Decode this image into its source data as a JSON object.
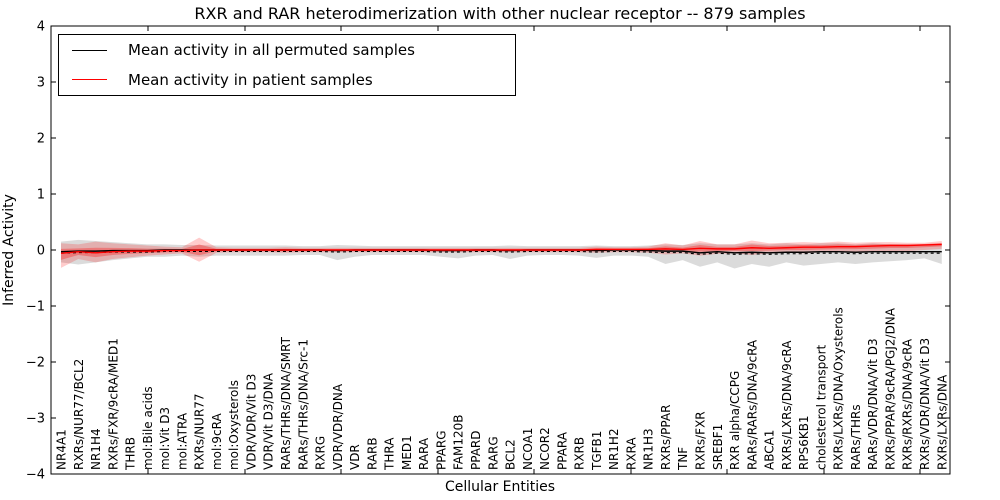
{
  "title": "RXR and RAR heterodimerization with other nuclear receptor -- 879 samples",
  "axes": {
    "xlabel": "Cellular Entities",
    "ylabel": "Inferred Activity",
    "yticks": [
      "4",
      "3",
      "2",
      "1",
      "0",
      "−1",
      "−2",
      "−3",
      "−4"
    ],
    "ylim": [
      -4,
      4
    ]
  },
  "legend": {
    "items": [
      {
        "label": "Mean activity in all permuted samples",
        "color": "#000000"
      },
      {
        "label": "Mean activity in patient samples",
        "color": "#ff0000"
      }
    ]
  },
  "colors": {
    "permuted_line": "#000000",
    "patient_line": "#ff0000",
    "permuted_band": "#000000",
    "patient_band": "#ff0000"
  },
  "chart_data": {
    "type": "line",
    "title": "RXR and RAR heterodimerization with other nuclear receptor -- 879 samples",
    "xlabel": "Cellular Entities",
    "ylabel": "Inferred Activity",
    "ylim": [
      -4,
      4
    ],
    "grid": false,
    "legend_position": "upper left",
    "categories": [
      "NR4A1",
      "RXRs/NUR77/BCL2",
      "NR1H4",
      "RXRs/FXR/9cRA/MED1",
      "THRB",
      "mol:Bile acids",
      "mol:Vit D3",
      "mol:ATRA",
      "RXRs/NUR77",
      "mol:9cRA",
      "mol:Oxysterols",
      "VDR/VDR/Vit D3",
      "VDR/Vit D3/DNA",
      "RARs/THRs/DNA/SMRT",
      "RARs/THRs/DNA/Src-1",
      "RXRG",
      "VDR/VDR/DNA",
      "VDR",
      "RARB",
      "THRA",
      "MED1",
      "RARA",
      "PPARG",
      "FAM120B",
      "PPARD",
      "RARG",
      "BCL2",
      "NCOA1",
      "NCOR2",
      "PPARA",
      "RXRB",
      "TGFB1",
      "NR1H2",
      "RXRA",
      "NR1H3",
      "RXRs/PPAR",
      "TNF",
      "RXRs/FXR",
      "SREBF1",
      "RXR alpha/CCPG",
      "RARs/RARs/DNA/9cRA",
      "ABCA1",
      "RXRs/LXRs/DNA/9cRA",
      "RPS6KB1",
      "cholesterol transport",
      "RXRs/LXRs/DNA/Oxysterols",
      "RARs/THRs",
      "RARs/VDR/DNA/Vit D3",
      "RXRs/PPAR/9cRA/PGJ2/DNA",
      "RXRs/RXRs/DNA/9cRA",
      "RXRs/VDR/DNA/Vit D3",
      "RXRs/LXRs/DNA"
    ],
    "series": [
      {
        "name": "Mean activity in all permuted samples",
        "color": "#000000",
        "values": [
          -0.03,
          -0.02,
          -0.02,
          -0.01,
          -0.01,
          -0.01,
          0,
          0,
          0,
          0,
          0,
          0,
          0,
          0,
          0,
          0,
          -0.01,
          0,
          0,
          0,
          0,
          0,
          -0.01,
          -0.01,
          0,
          0,
          -0.01,
          0,
          0,
          0,
          0,
          -0.01,
          0,
          0,
          -0.01,
          -0.02,
          -0.02,
          -0.05,
          -0.03,
          -0.05,
          -0.04,
          -0.05,
          -0.04,
          -0.04,
          -0.03,
          -0.03,
          -0.04,
          -0.03,
          -0.03,
          -0.03,
          -0.03,
          -0.03
        ]
      },
      {
        "name": "Mean activity in patient samples",
        "color": "#ff0000",
        "values": [
          -0.06,
          -0.03,
          -0.05,
          -0.03,
          -0.02,
          -0.02,
          -0.01,
          -0.01,
          0,
          0,
          0,
          0,
          0,
          0,
          0,
          0,
          0,
          0,
          0,
          0,
          0,
          0,
          0,
          0,
          0,
          0,
          0,
          0,
          0,
          0,
          0,
          0.01,
          0.01,
          0.01,
          0.01,
          0.02,
          0.01,
          0.03,
          0.02,
          0.02,
          0.04,
          0.03,
          0.04,
          0.05,
          0.05,
          0.06,
          0.06,
          0.07,
          0.08,
          0.08,
          0.09,
          0.1
        ]
      }
    ],
    "bands": [
      {
        "name": "permuted-samples-range",
        "color": "#000000",
        "opacity": 0.14,
        "upper": [
          0.15,
          0.18,
          0.16,
          0.14,
          0.12,
          0.1,
          0.1,
          0.09,
          0.09,
          0.08,
          0.08,
          0.08,
          0.08,
          0.08,
          0.07,
          0.07,
          0.09,
          0.08,
          0.07,
          0.07,
          0.07,
          0.07,
          0.07,
          0.07,
          0.07,
          0.07,
          0.08,
          0.07,
          0.07,
          0.07,
          0.07,
          0.08,
          0.07,
          0.07,
          0.08,
          0.1,
          0.09,
          0.12,
          0.1,
          0.1,
          0.12,
          0.1,
          0.12,
          0.1,
          0.12,
          0.12,
          0.1,
          0.12,
          0.1,
          0.1,
          0.08,
          0.1
        ],
        "lower": [
          -0.22,
          -0.26,
          -0.22,
          -0.18,
          -0.15,
          -0.12,
          -0.12,
          -0.1,
          -0.12,
          -0.1,
          -0.1,
          -0.1,
          -0.1,
          -0.1,
          -0.09,
          -0.09,
          -0.18,
          -0.12,
          -0.09,
          -0.09,
          -0.09,
          -0.09,
          -0.12,
          -0.15,
          -0.1,
          -0.09,
          -0.16,
          -0.1,
          -0.09,
          -0.09,
          -0.1,
          -0.14,
          -0.1,
          -0.1,
          -0.12,
          -0.25,
          -0.18,
          -0.3,
          -0.22,
          -0.33,
          -0.25,
          -0.3,
          -0.22,
          -0.28,
          -0.25,
          -0.22,
          -0.25,
          -0.22,
          -0.2,
          -0.18,
          -0.15,
          -0.25
        ]
      },
      {
        "name": "patient-samples-range",
        "color": "#ff0000",
        "opacity": 0.2,
        "upper": [
          0.12,
          0.1,
          0.15,
          0.12,
          0.1,
          0.08,
          0.06,
          0.05,
          0.22,
          0.05,
          0.04,
          0.04,
          0.04,
          0.05,
          0.04,
          0.04,
          0.04,
          0.04,
          0.04,
          0.04,
          0.04,
          0.04,
          0.04,
          0.04,
          0.04,
          0.04,
          0.04,
          0.04,
          0.04,
          0.04,
          0.04,
          0.06,
          0.05,
          0.05,
          0.06,
          0.12,
          0.08,
          0.16,
          0.1,
          0.1,
          0.17,
          0.12,
          0.13,
          0.14,
          0.13,
          0.15,
          0.13,
          0.14,
          0.14,
          0.13,
          0.13,
          0.16
        ],
        "lower": [
          -0.32,
          -0.16,
          -0.22,
          -0.16,
          -0.13,
          -0.1,
          -0.08,
          -0.06,
          -0.21,
          -0.05,
          -0.04,
          -0.04,
          -0.04,
          -0.05,
          -0.04,
          -0.04,
          -0.04,
          -0.04,
          -0.04,
          -0.04,
          -0.04,
          -0.04,
          -0.04,
          -0.04,
          -0.04,
          -0.04,
          -0.04,
          -0.04,
          -0.04,
          -0.04,
          -0.04,
          -0.05,
          -0.04,
          -0.04,
          -0.05,
          -0.08,
          -0.06,
          -0.1,
          -0.07,
          -0.06,
          -0.09,
          -0.06,
          -0.05,
          -0.06,
          -0.04,
          -0.04,
          -0.04,
          -0.03,
          -0.02,
          -0.02,
          0,
          0.02
        ]
      }
    ]
  }
}
